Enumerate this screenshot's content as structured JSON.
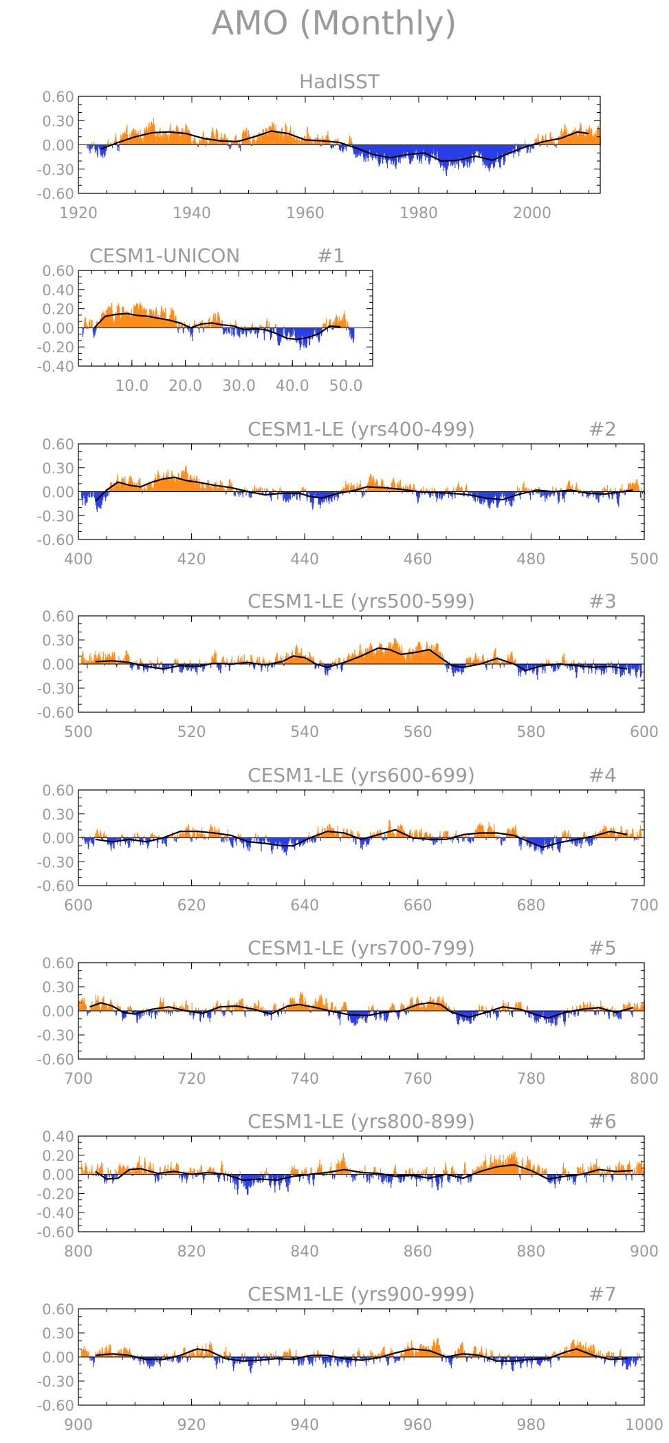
{
  "title": "AMO (Monthly)",
  "colors": {
    "positive": "#ff8c1a",
    "negative": "#2b3fe6",
    "smooth": "#000000",
    "frame": "#000000",
    "text": "#9a9a9a"
  },
  "chart_data": [
    {
      "type": "bar",
      "name": "HadISST",
      "label_right": "",
      "xlim": [
        1920,
        2012
      ],
      "ylim": [
        -0.6,
        0.6
      ],
      "xticks": [
        1920,
        1940,
        1960,
        1980,
        2000
      ],
      "xtick_labels": [
        "1920",
        "1940",
        "1960",
        "1980",
        "2000"
      ],
      "yticks": [
        -0.6,
        -0.3,
        0,
        0.3,
        0.6
      ],
      "ytick_labels": [
        "-0.60",
        "-0.30",
        "0.00",
        "0.30",
        "0.60"
      ],
      "smooth": [
        [
          1924,
          -0.05
        ],
        [
          1927,
          0.03
        ],
        [
          1930,
          0.1
        ],
        [
          1933,
          0.15
        ],
        [
          1936,
          0.16
        ],
        [
          1939,
          0.14
        ],
        [
          1942,
          0.08
        ],
        [
          1945,
          0.05
        ],
        [
          1948,
          0.04
        ],
        [
          1951,
          0.1
        ],
        [
          1954,
          0.17
        ],
        [
          1957,
          0.14
        ],
        [
          1960,
          0.06
        ],
        [
          1963,
          0.05
        ],
        [
          1966,
          0.03
        ],
        [
          1969,
          -0.04
        ],
        [
          1972,
          -0.12
        ],
        [
          1975,
          -0.16
        ],
        [
          1978,
          -0.12
        ],
        [
          1981,
          -0.1
        ],
        [
          1984,
          -0.2
        ],
        [
          1987,
          -0.19
        ],
        [
          1990,
          -0.14
        ],
        [
          1993,
          -0.19
        ],
        [
          1996,
          -0.1
        ],
        [
          1999,
          -0.02
        ],
        [
          2002,
          0.04
        ],
        [
          2005,
          0.08
        ],
        [
          2008,
          0.16
        ],
        [
          2010,
          0.14
        ]
      ]
    },
    {
      "type": "bar",
      "name": "CESM1-UNICON",
      "label_right": "#1",
      "xlim": [
        0,
        55
      ],
      "ylim": [
        -0.4,
        0.6
      ],
      "xticks": [
        10,
        20,
        30,
        40,
        50
      ],
      "xtick_labels": [
        "10.0",
        "20.0",
        "30.0",
        "40.0",
        "50.0"
      ],
      "yticks": [
        -0.4,
        -0.2,
        0,
        0.2,
        0.4,
        0.6
      ],
      "ytick_labels": [
        "-0.40",
        "-0.20",
        "0.00",
        "0.20",
        "0.40",
        "0.60"
      ],
      "smooth": [
        [
          3,
          0.0
        ],
        [
          5,
          0.12
        ],
        [
          7,
          0.14
        ],
        [
          9,
          0.15
        ],
        [
          11,
          0.13
        ],
        [
          13,
          0.12
        ],
        [
          15,
          0.1
        ],
        [
          17,
          0.08
        ],
        [
          19,
          0.05
        ],
        [
          21,
          0.0
        ],
        [
          23,
          0.04
        ],
        [
          25,
          0.05
        ],
        [
          27,
          0.03
        ],
        [
          29,
          0.02
        ],
        [
          31,
          -0.02
        ],
        [
          33,
          -0.01
        ],
        [
          35,
          -0.02
        ],
        [
          37,
          -0.06
        ],
        [
          39,
          -0.11
        ],
        [
          41,
          -0.12
        ],
        [
          43,
          -0.1
        ],
        [
          45,
          -0.06
        ],
        [
          47,
          0.02
        ],
        [
          49,
          0.01
        ]
      ]
    },
    {
      "type": "bar",
      "name": "CESM1-LE (yrs400-499)",
      "label_right": "#2",
      "xlim": [
        400,
        500
      ],
      "ylim": [
        -0.6,
        0.6
      ],
      "xticks": [
        400,
        420,
        440,
        460,
        480,
        500
      ],
      "xtick_labels": [
        "400",
        "420",
        "440",
        "460",
        "480",
        "500"
      ],
      "yticks": [
        -0.6,
        -0.3,
        0,
        0.3,
        0.6
      ],
      "ytick_labels": [
        "-0.60",
        "-0.30",
        "0.00",
        "0.30",
        "0.60"
      ],
      "smooth": [
        [
          403,
          -0.12
        ],
        [
          405,
          0.02
        ],
        [
          407,
          0.12
        ],
        [
          409,
          0.08
        ],
        [
          411,
          0.06
        ],
        [
          413,
          0.12
        ],
        [
          415,
          0.16
        ],
        [
          417,
          0.18
        ],
        [
          419,
          0.14
        ],
        [
          421,
          0.12
        ],
        [
          424,
          0.08
        ],
        [
          427,
          0.05
        ],
        [
          430,
          0.0
        ],
        [
          433,
          -0.04
        ],
        [
          436,
          -0.02
        ],
        [
          439,
          -0.02
        ],
        [
          441,
          -0.06
        ],
        [
          443,
          -0.08
        ],
        [
          446,
          -0.02
        ],
        [
          449,
          0.02
        ],
        [
          451,
          0.06
        ],
        [
          454,
          0.05
        ],
        [
          457,
          0.03
        ],
        [
          460,
          0.0
        ],
        [
          463,
          -0.01
        ],
        [
          466,
          -0.02
        ],
        [
          469,
          -0.04
        ],
        [
          472,
          -0.08
        ],
        [
          475,
          -0.1
        ],
        [
          478,
          -0.03
        ],
        [
          481,
          0.02
        ],
        [
          484,
          0.0
        ],
        [
          487,
          0.02
        ],
        [
          490,
          -0.02
        ],
        [
          493,
          -0.03
        ],
        [
          496,
          0.0
        ],
        [
          498,
          0.02
        ]
      ]
    },
    {
      "type": "bar",
      "name": "CESM1-LE (yrs500-599)",
      "label_right": "#3",
      "xlim": [
        500,
        600
      ],
      "ylim": [
        -0.6,
        0.6
      ],
      "xticks": [
        500,
        520,
        540,
        560,
        580,
        600
      ],
      "xtick_labels": [
        "500",
        "520",
        "540",
        "560",
        "580",
        "600"
      ],
      "yticks": [
        -0.6,
        -0.3,
        0,
        0.3,
        0.6
      ],
      "ytick_labels": [
        "-0.60",
        "-0.30",
        "0.00",
        "0.30",
        "0.60"
      ],
      "smooth": [
        [
          503,
          0.03
        ],
        [
          506,
          0.04
        ],
        [
          509,
          0.02
        ],
        [
          512,
          -0.03
        ],
        [
          515,
          -0.06
        ],
        [
          518,
          -0.02
        ],
        [
          521,
          -0.03
        ],
        [
          524,
          0.01
        ],
        [
          527,
          0.0
        ],
        [
          530,
          0.02
        ],
        [
          533,
          -0.01
        ],
        [
          536,
          0.03
        ],
        [
          538,
          0.1
        ],
        [
          540,
          0.08
        ],
        [
          542,
          0.0
        ],
        [
          544,
          -0.04
        ],
        [
          547,
          0.02
        ],
        [
          550,
          0.1
        ],
        [
          553,
          0.2
        ],
        [
          555,
          0.18
        ],
        [
          557,
          0.12
        ],
        [
          560,
          0.15
        ],
        [
          562,
          0.18
        ],
        [
          564,
          0.08
        ],
        [
          566,
          -0.02
        ],
        [
          568,
          -0.04
        ],
        [
          571,
          0.0
        ],
        [
          574,
          0.07
        ],
        [
          577,
          0.0
        ],
        [
          579,
          -0.08
        ],
        [
          582,
          -0.02
        ],
        [
          585,
          0.0
        ],
        [
          588,
          -0.02
        ],
        [
          591,
          -0.04
        ],
        [
          594,
          -0.03
        ],
        [
          597,
          -0.06
        ]
      ]
    },
    {
      "type": "bar",
      "name": "CESM1-LE (yrs600-699)",
      "label_right": "#4",
      "xlim": [
        600,
        700
      ],
      "ylim": [
        -0.6,
        0.6
      ],
      "xticks": [
        600,
        620,
        640,
        660,
        680,
        700
      ],
      "xtick_labels": [
        "600",
        "620",
        "640",
        "660",
        "680",
        "700"
      ],
      "yticks": [
        -0.6,
        -0.3,
        0,
        0.3,
        0.6
      ],
      "ytick_labels": [
        "-0.60",
        "-0.30",
        "0.00",
        "0.30",
        "0.60"
      ],
      "smooth": [
        [
          603,
          -0.02
        ],
        [
          606,
          -0.05
        ],
        [
          609,
          -0.02
        ],
        [
          612,
          -0.05
        ],
        [
          615,
          0.0
        ],
        [
          618,
          0.08
        ],
        [
          621,
          0.08
        ],
        [
          624,
          0.06
        ],
        [
          627,
          0.03
        ],
        [
          630,
          -0.05
        ],
        [
          633,
          -0.07
        ],
        [
          636,
          -0.1
        ],
        [
          638,
          -0.1
        ],
        [
          641,
          0.0
        ],
        [
          644,
          0.08
        ],
        [
          647,
          0.06
        ],
        [
          650,
          -0.02
        ],
        [
          653,
          0.04
        ],
        [
          656,
          0.1
        ],
        [
          659,
          0.0
        ],
        [
          662,
          -0.02
        ],
        [
          665,
          -0.02
        ],
        [
          668,
          0.04
        ],
        [
          671,
          0.06
        ],
        [
          674,
          0.06
        ],
        [
          677,
          0.03
        ],
        [
          680,
          -0.06
        ],
        [
          682,
          -0.12
        ],
        [
          685,
          -0.06
        ],
        [
          688,
          -0.02
        ],
        [
          691,
          0.02
        ],
        [
          694,
          0.08
        ],
        [
          697,
          0.04
        ]
      ]
    },
    {
      "type": "bar",
      "name": "CESM1-LE (yrs700-799)",
      "label_right": "#5",
      "xlim": [
        700,
        800
      ],
      "ylim": [
        -0.6,
        0.6
      ],
      "xticks": [
        700,
        720,
        740,
        760,
        780,
        800
      ],
      "xtick_labels": [
        "700",
        "720",
        "740",
        "760",
        "780",
        "800"
      ],
      "yticks": [
        -0.6,
        -0.3,
        0,
        0.3,
        0.6
      ],
      "ytick_labels": [
        "-0.60",
        "-0.30",
        "0.00",
        "0.30",
        "0.60"
      ],
      "smooth": [
        [
          702,
          0.05
        ],
        [
          704,
          0.1
        ],
        [
          706,
          0.06
        ],
        [
          708,
          -0.02
        ],
        [
          710,
          -0.04
        ],
        [
          713,
          0.02
        ],
        [
          716,
          0.05
        ],
        [
          719,
          0.0
        ],
        [
          722,
          -0.03
        ],
        [
          725,
          0.05
        ],
        [
          728,
          0.06
        ],
        [
          731,
          0.02
        ],
        [
          734,
          -0.04
        ],
        [
          737,
          0.06
        ],
        [
          739,
          0.08
        ],
        [
          742,
          0.04
        ],
        [
          745,
          -0.01
        ],
        [
          748,
          -0.05
        ],
        [
          751,
          -0.06
        ],
        [
          754,
          -0.02
        ],
        [
          757,
          0.0
        ],
        [
          760,
          0.08
        ],
        [
          762,
          0.1
        ],
        [
          764,
          0.08
        ],
        [
          766,
          -0.02
        ],
        [
          769,
          -0.08
        ],
        [
          772,
          -0.02
        ],
        [
          775,
          0.05
        ],
        [
          778,
          0.02
        ],
        [
          781,
          -0.05
        ],
        [
          783,
          -0.09
        ],
        [
          786,
          -0.02
        ],
        [
          789,
          0.02
        ],
        [
          792,
          0.04
        ],
        [
          795,
          -0.02
        ],
        [
          798,
          0.04
        ]
      ]
    },
    {
      "type": "bar",
      "name": "CESM1-LE (yrs800-899)",
      "label_right": "#6",
      "xlim": [
        800,
        900
      ],
      "ylim": [
        -0.6,
        0.4
      ],
      "xticks": [
        800,
        820,
        840,
        860,
        880,
        900
      ],
      "xtick_labels": [
        "800",
        "820",
        "840",
        "860",
        "880",
        "900"
      ],
      "yticks": [
        -0.6,
        -0.4,
        -0.2,
        0,
        0.2,
        0.4
      ],
      "ytick_labels": [
        "-0.60",
        "-0.40",
        "-0.20",
        "0.00",
        "0.20",
        "0.40"
      ],
      "smooth": [
        [
          803,
          0.03
        ],
        [
          805,
          -0.05
        ],
        [
          807,
          -0.04
        ],
        [
          809,
          0.05
        ],
        [
          811,
          0.06
        ],
        [
          814,
          0.01
        ],
        [
          817,
          0.03
        ],
        [
          820,
          0.0
        ],
        [
          823,
          0.02
        ],
        [
          826,
          0.0
        ],
        [
          829,
          -0.06
        ],
        [
          832,
          -0.05
        ],
        [
          835,
          -0.06
        ],
        [
          838,
          -0.02
        ],
        [
          841,
          0.0
        ],
        [
          844,
          0.02
        ],
        [
          847,
          0.05
        ],
        [
          850,
          0.02
        ],
        [
          853,
          0.01
        ],
        [
          856,
          -0.02
        ],
        [
          859,
          -0.01
        ],
        [
          862,
          -0.04
        ],
        [
          865,
          0.0
        ],
        [
          868,
          -0.04
        ],
        [
          871,
          0.03
        ],
        [
          874,
          0.08
        ],
        [
          877,
          0.1
        ],
        [
          880,
          0.04
        ],
        [
          883,
          -0.05
        ],
        [
          886,
          -0.02
        ],
        [
          889,
          0.0
        ],
        [
          892,
          0.05
        ],
        [
          895,
          0.03
        ],
        [
          898,
          0.04
        ]
      ]
    },
    {
      "type": "bar",
      "name": "CESM1-LE (yrs900-999)",
      "label_right": "#7",
      "xlim": [
        900,
        1000
      ],
      "ylim": [
        -0.6,
        0.6
      ],
      "xticks": [
        900,
        920,
        940,
        960,
        980,
        1000
      ],
      "xtick_labels": [
        "900",
        "920",
        "940",
        "960",
        "980",
        "1000"
      ],
      "yticks": [
        -0.6,
        -0.3,
        0,
        0.3,
        0.6
      ],
      "ytick_labels": [
        "-0.60",
        "-0.30",
        "0.00",
        "0.30",
        "0.60"
      ],
      "smooth": [
        [
          903,
          0.02
        ],
        [
          906,
          0.04
        ],
        [
          909,
          0.02
        ],
        [
          912,
          -0.03
        ],
        [
          915,
          -0.03
        ],
        [
          918,
          0.02
        ],
        [
          921,
          0.1
        ],
        [
          923,
          0.08
        ],
        [
          926,
          -0.02
        ],
        [
          929,
          -0.05
        ],
        [
          932,
          -0.04
        ],
        [
          935,
          -0.02
        ],
        [
          938,
          -0.03
        ],
        [
          941,
          0.02
        ],
        [
          944,
          0.02
        ],
        [
          947,
          -0.02
        ],
        [
          950,
          -0.04
        ],
        [
          953,
          -0.01
        ],
        [
          956,
          0.05
        ],
        [
          959,
          0.1
        ],
        [
          962,
          0.08
        ],
        [
          965,
          0.0
        ],
        [
          968,
          0.04
        ],
        [
          971,
          0.02
        ],
        [
          974,
          -0.05
        ],
        [
          977,
          -0.05
        ],
        [
          980,
          -0.03
        ],
        [
          983,
          -0.02
        ],
        [
          986,
          0.06
        ],
        [
          988,
          0.1
        ],
        [
          991,
          0.02
        ],
        [
          994,
          -0.03
        ],
        [
          997,
          -0.02
        ]
      ]
    }
  ]
}
